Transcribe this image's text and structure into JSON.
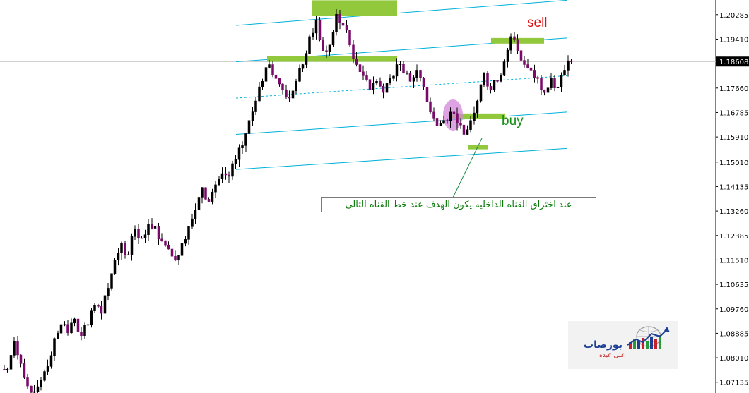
{
  "chart_data": {
    "type": "candlestick",
    "title": "",
    "xlabel": "",
    "ylabel": "",
    "ylim": [
      1.0675,
      1.2081
    ],
    "ticks": [
      "1.20285",
      "1.19410",
      "1.17660",
      "1.16785",
      "1.15910",
      "1.15010",
      "1.14135",
      "1.13260",
      "1.12385",
      "1.11510",
      "1.10635",
      "1.09760",
      "1.08885",
      "1.08010",
      "1.07135"
    ],
    "tick_values": [
      1.20285,
      1.1941,
      1.1766,
      1.16785,
      1.1591,
      1.1501,
      1.14135,
      1.1326,
      1.12385,
      1.1151,
      1.10635,
      1.0976,
      1.08885,
      1.0801,
      1.07135
    ],
    "current_price": "1.18608",
    "current_price_value": 1.18608,
    "series_points": [
      1.076,
      1.086,
      1.078,
      1.07,
      1.068,
      1.072,
      1.077,
      1.087,
      1.092,
      1.089,
      1.094,
      1.088,
      1.092,
      1.099,
      1.096,
      1.105,
      1.115,
      1.121,
      1.117,
      1.126,
      1.123,
      1.128,
      1.127,
      1.122,
      1.119,
      1.115,
      1.121,
      1.127,
      1.133,
      1.141,
      1.136,
      1.142,
      1.146,
      1.145,
      1.151,
      1.156,
      1.165,
      1.172,
      1.179,
      1.185,
      1.18,
      1.176,
      1.173,
      1.179,
      1.185,
      1.195,
      1.201,
      1.19,
      1.192,
      1.203,
      1.199,
      1.192,
      1.185,
      1.181,
      1.176,
      1.179,
      1.175,
      1.18,
      1.185,
      1.182,
      1.179,
      1.183,
      1.177,
      1.168,
      1.163,
      1.165,
      1.168,
      1.164,
      1.16,
      1.165,
      1.172,
      1.182,
      1.176,
      1.179,
      1.186,
      1.195,
      1.19,
      1.185,
      1.183,
      1.18,
      1.175,
      1.18,
      1.177,
      1.183,
      1.186
    ],
    "channel_lines": [
      {
        "color": "#00b0d8",
        "style": "solid",
        "start": [
          0,
          1.199
        ],
        "end": [
          84,
          1.208
        ]
      },
      {
        "color": "#00b0d8",
        "style": "solid",
        "start": [
          0,
          1.186
        ],
        "end": [
          84,
          1.1945
        ]
      },
      {
        "color": "#00b0d8",
        "style": "dashed",
        "start": [
          0,
          1.173
        ],
        "end": [
          84,
          1.181
        ]
      },
      {
        "color": "#00b0d8",
        "style": "solid",
        "start": [
          0,
          1.16
        ],
        "end": [
          84,
          1.168
        ]
      },
      {
        "color": "#00b0d8",
        "style": "solid",
        "start": [
          0,
          1.1475
        ],
        "end": [
          84,
          1.155
        ]
      }
    ],
    "zones": [
      {
        "label": "sell",
        "price_low": 1.1925,
        "price_high": 1.1945
      },
      {
        "label": "buy",
        "price_low": 1.1655,
        "price_high": 1.1675
      }
    ],
    "colors": {
      "bull": "#000000",
      "bear_fill": "#7a0b6a",
      "wick": "#000000",
      "channel": "#00b0d8",
      "zone_fill": "#92c83c",
      "highlight": "#d184d8",
      "current_line": "#c0c0c0"
    }
  },
  "labels": {
    "sell": "sell",
    "buy": "buy",
    "annotation": "عند اختراق القناه الداخليه  يكون الهدف عند خط القناه التالى"
  },
  "logo": {
    "name": "بورصات",
    "subtitle": "على عبده"
  }
}
